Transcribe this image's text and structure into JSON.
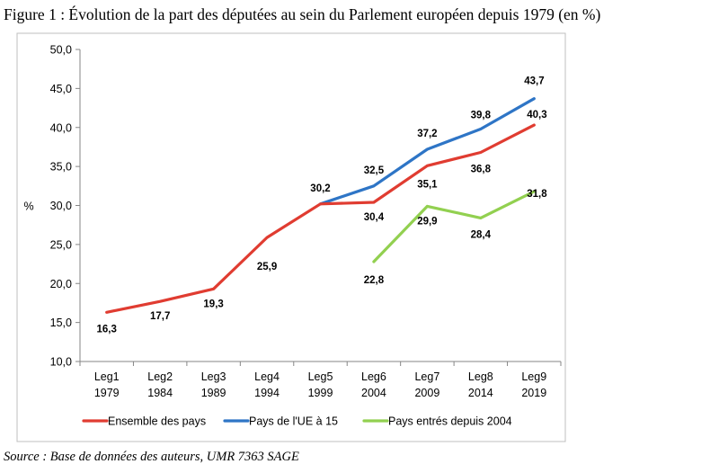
{
  "figure": {
    "title": "Figure 1 : Évolution de la part des députées au sein du Parlement européen depuis 1979 (en %)",
    "source": "Source : Base de données des auteurs, UMR 7363 SAGE"
  },
  "chart_data": {
    "type": "line",
    "title": "",
    "xlabel": "",
    "ylabel": "%",
    "ylim": [
      10,
      50
    ],
    "ytick_step": 5,
    "ytick_labels": [
      "10,0",
      "15,0",
      "20,0",
      "25,0",
      "30,0",
      "35,0",
      "40,0",
      "45,0",
      "50,0"
    ],
    "grid": false,
    "legend_position": "bottom",
    "categories": [
      [
        "Leg1",
        "1979"
      ],
      [
        "Leg2",
        "1984"
      ],
      [
        "Leg3",
        "1989"
      ],
      [
        "Leg4",
        "1994"
      ],
      [
        "Leg5",
        "1999"
      ],
      [
        "Leg6",
        "2004"
      ],
      [
        "Leg7",
        "2009"
      ],
      [
        "Leg8",
        "2014"
      ],
      [
        "Leg9",
        "2019"
      ]
    ],
    "series": [
      {
        "name": "Ensemble des pays",
        "color": "#E03C31",
        "values": [
          16.3,
          17.7,
          19.3,
          25.9,
          30.2,
          30.4,
          35.1,
          36.8,
          40.3
        ],
        "labels": [
          "16,3",
          "17,7",
          "19,3",
          "25,9",
          "30,2",
          "30,4",
          "35,1",
          "36,8",
          "40,3"
        ]
      },
      {
        "name": "Pays de l'UE à 15",
        "color": "#2E75C6",
        "values": [
          null,
          null,
          null,
          null,
          30.2,
          32.5,
          37.2,
          39.8,
          43.7
        ],
        "labels": [
          null,
          null,
          null,
          null,
          null,
          "32,5",
          "37,2",
          "39,8",
          "43,7"
        ]
      },
      {
        "name": "Pays entrés depuis 2004",
        "color": "#92D050",
        "values": [
          null,
          null,
          null,
          null,
          null,
          22.8,
          29.9,
          28.4,
          31.8
        ],
        "labels": [
          null,
          null,
          null,
          null,
          null,
          "22,8",
          "29,9",
          "28,4",
          "31,8"
        ]
      }
    ]
  }
}
